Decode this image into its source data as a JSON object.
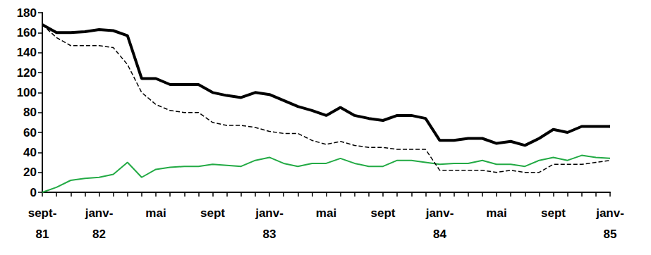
{
  "chart_data": {
    "type": "line",
    "categories": [
      "sept-\n81",
      null,
      null,
      null,
      "janv-\n82",
      null,
      null,
      null,
      "mai",
      null,
      null,
      null,
      "sept",
      null,
      null,
      null,
      "janv-\n83",
      null,
      null,
      null,
      "mai",
      null,
      null,
      null,
      "sept",
      null,
      null,
      null,
      "janv-\n84",
      null,
      null,
      null,
      "mai",
      null,
      null,
      null,
      "sept",
      null,
      null,
      null,
      "janv-\n85"
    ],
    "series": [
      {
        "color": "#000000",
        "line_style": "solid",
        "values": [
          168,
          160,
          160,
          161,
          163,
          162,
          157,
          114,
          114,
          108,
          108,
          108,
          100,
          97,
          95,
          100,
          98,
          92,
          86,
          82,
          77,
          85,
          77,
          74,
          72,
          77,
          77,
          74,
          52,
          52,
          54,
          54,
          49,
          51,
          47,
          54,
          63,
          60,
          66,
          66,
          66
        ]
      },
      {
        "color": "#000000",
        "line_style": "dashed",
        "values": [
          168,
          155,
          147,
          147,
          147,
          145,
          128,
          100,
          88,
          82,
          80,
          80,
          70,
          67,
          67,
          65,
          61,
          59,
          59,
          52,
          48,
          51,
          47,
          45,
          45,
          43,
          43,
          43,
          22,
          22,
          22,
          22,
          20,
          22,
          20,
          20,
          28,
          28,
          28,
          30,
          32
        ]
      },
      {
        "color": "#22aa44",
        "line_style": "solid",
        "values": [
          0,
          5,
          12,
          14,
          15,
          18,
          30,
          15,
          23,
          25,
          26,
          26,
          28,
          27,
          26,
          32,
          35,
          29,
          26,
          29,
          29,
          34,
          29,
          26,
          26,
          32,
          32,
          30,
          28,
          29,
          29,
          32,
          28,
          28,
          26,
          32,
          35,
          32,
          37,
          35,
          34
        ]
      }
    ],
    "ylim": [
      0,
      180
    ],
    "yticks": [
      0,
      20,
      40,
      60,
      80,
      100,
      120,
      140,
      160,
      180
    ],
    "grid": false
  }
}
